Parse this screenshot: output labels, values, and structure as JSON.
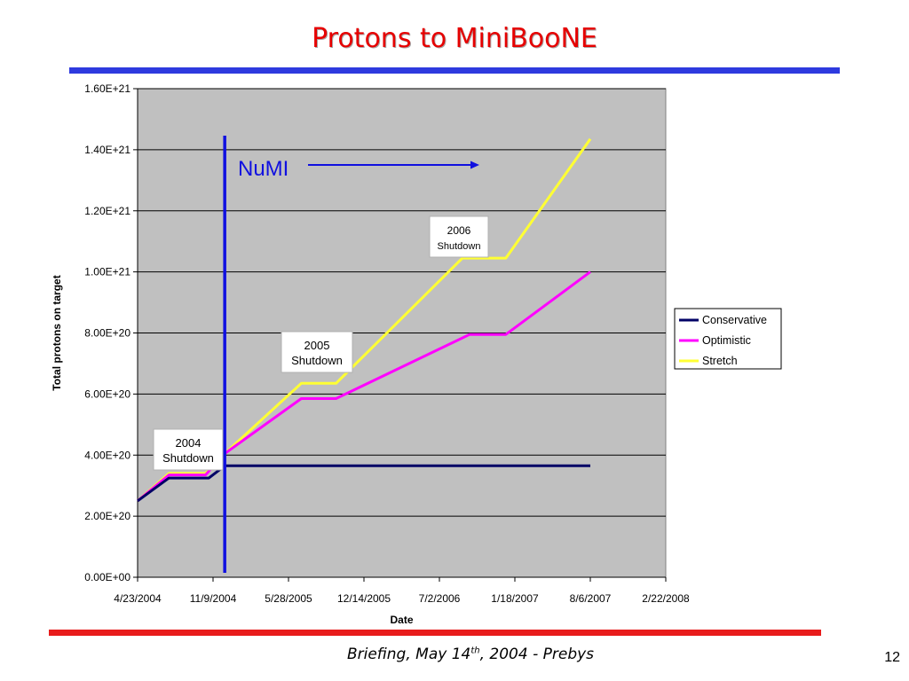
{
  "slide": {
    "title": "Protons to MiniBooNE",
    "footer": "Briefing, May 14",
    "footer_sup": "th",
    "footer_tail": ", 2004  - Prebys",
    "page_number": "12"
  },
  "colors": {
    "title": "#e60000",
    "top_rule": "#2e3adf",
    "bottom_rule": "#e81c1c",
    "plot_bg": "#c0c0c0",
    "numi_marker": "#1010e0"
  },
  "chart_data": {
    "type": "line",
    "title": "",
    "xlabel": "Date",
    "ylabel": "Total protons on target",
    "x_ticks": [
      "4/23/2004",
      "11/9/2004",
      "5/28/2005",
      "12/14/2005",
      "7/2/2006",
      "1/18/2007",
      "8/6/2007",
      "2/22/2008"
    ],
    "y_ticks": [
      "0.00E+00",
      "2.00E+20",
      "4.00E+20",
      "6.00E+20",
      "8.00E+20",
      "1.00E+21",
      "1.20E+21",
      "1.40E+21",
      "1.60E+21"
    ],
    "xlim": [
      "4/23/2004",
      "2/22/2008"
    ],
    "ylim": [
      0,
      1.6e+21
    ],
    "grid": "horizontal",
    "legend_position": "right",
    "series": [
      {
        "name": "Conservative",
        "color": "#000066",
        "x": [
          "4/23/2004",
          "7/15/2004",
          "10/29/2004",
          "12/10/2004",
          "8/6/2007"
        ],
        "y": [
          2.5e+20,
          3.25e+20,
          3.25e+20,
          3.65e+20,
          3.65e+20
        ]
      },
      {
        "name": "Optimistic",
        "color": "#ff00ff",
        "x": [
          "4/23/2004",
          "7/15/2004",
          "10/20/2004",
          "12/10/2004",
          "7/1/2005",
          "10/1/2005",
          "9/20/2006",
          "12/25/2006",
          "8/6/2007"
        ],
        "y": [
          2.5e+20,
          3.35e+20,
          3.35e+20,
          4.05e+20,
          5.85e+20,
          5.85e+20,
          7.95e+20,
          7.95e+20,
          1e+21
        ]
      },
      {
        "name": "Stretch",
        "color": "#ffff33",
        "x": [
          "4/23/2004",
          "7/15/2004",
          "10/20/2004",
          "12/10/2004",
          "7/1/2005",
          "10/1/2005",
          "9/1/2006",
          "12/25/2006",
          "8/6/2007"
        ],
        "y": [
          2.5e+20,
          3.4e+20,
          3.4e+20,
          4.05e+20,
          6.35e+20,
          6.35e+20,
          1.045e+21,
          1.045e+21,
          1.435e+21
        ]
      }
    ],
    "annotations": [
      {
        "id": "numi",
        "text": "NuMI"
      },
      {
        "id": "shutdown_2004",
        "line1": "2004",
        "line2": "Shutdown"
      },
      {
        "id": "shutdown_2005",
        "line1": "2005",
        "line2": "Shutdown"
      },
      {
        "id": "shutdown_2006",
        "line1": "2006",
        "line2": "Shutdown"
      }
    ]
  }
}
